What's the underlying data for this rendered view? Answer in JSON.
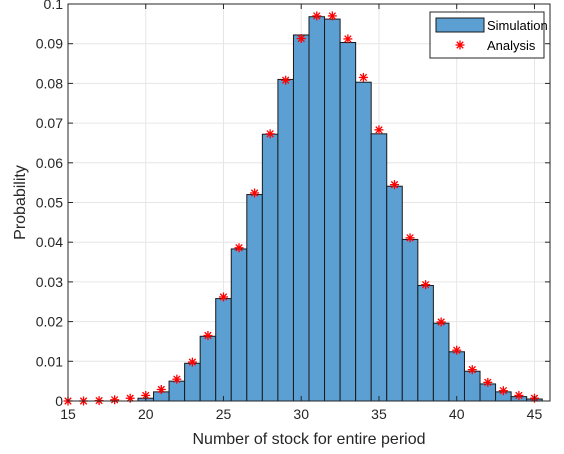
{
  "chart_data": {
    "type": "bar",
    "xlabel": "Number of stock for entire period",
    "ylabel": "Probability",
    "xlim": [
      15,
      46
    ],
    "ylim": [
      0,
      0.1
    ],
    "xticks": [
      "15",
      "20",
      "25",
      "30",
      "35",
      "40",
      "45"
    ],
    "xtick_values": [
      15,
      20,
      25,
      30,
      35,
      40,
      45
    ],
    "yticks": [
      "0",
      "0.01",
      "0.02",
      "0.03",
      "0.04",
      "0.05",
      "0.06",
      "0.07",
      "0.08",
      "0.09",
      "0.1"
    ],
    "ytick_values": [
      0,
      0.01,
      0.02,
      0.03,
      0.04,
      0.05,
      0.06,
      0.07,
      0.08,
      0.09,
      0.1
    ],
    "grid": true,
    "legend_position": "top-right",
    "colors": {
      "bar_fill": "#5b9fd3",
      "bar_edge": "#1a1a1a",
      "marker": "#ff0000",
      "grid": "#e6e6e6",
      "axis": "#262626"
    },
    "series": [
      {
        "name": "Simulation",
        "kind": "histogram",
        "bin_width": 1,
        "x": [
          20,
          21,
          22,
          23,
          24,
          25,
          26,
          27,
          28,
          29,
          30,
          31,
          32,
          33,
          34,
          35,
          36,
          37,
          38,
          39,
          40,
          41,
          42,
          43,
          44,
          45
        ],
        "values": [
          0.0007,
          0.0023,
          0.005,
          0.0095,
          0.0163,
          0.0258,
          0.0383,
          0.052,
          0.0672,
          0.081,
          0.0922,
          0.0968,
          0.0962,
          0.0903,
          0.0803,
          0.0673,
          0.0541,
          0.0407,
          0.0291,
          0.0196,
          0.0124,
          0.0075,
          0.0043,
          0.0023,
          0.0011,
          0.0005
        ]
      },
      {
        "name": "Analysis",
        "kind": "markers",
        "x": [
          15,
          16,
          17,
          18,
          19,
          20,
          21,
          22,
          23,
          24,
          25,
          26,
          27,
          28,
          29,
          30,
          31,
          32,
          33,
          34,
          35,
          36,
          37,
          38,
          39,
          40,
          41,
          42,
          43,
          44,
          45
        ],
        "values": [
          0.0,
          0.0,
          0.0001,
          0.0003,
          0.0007,
          0.0014,
          0.0029,
          0.0055,
          0.0098,
          0.0165,
          0.0262,
          0.0386,
          0.0524,
          0.0673,
          0.0808,
          0.0913,
          0.097,
          0.097,
          0.0912,
          0.0815,
          0.0683,
          0.0545,
          0.0411,
          0.0293,
          0.0199,
          0.0128,
          0.0079,
          0.0047,
          0.0026,
          0.0014,
          0.0007
        ]
      }
    ]
  }
}
